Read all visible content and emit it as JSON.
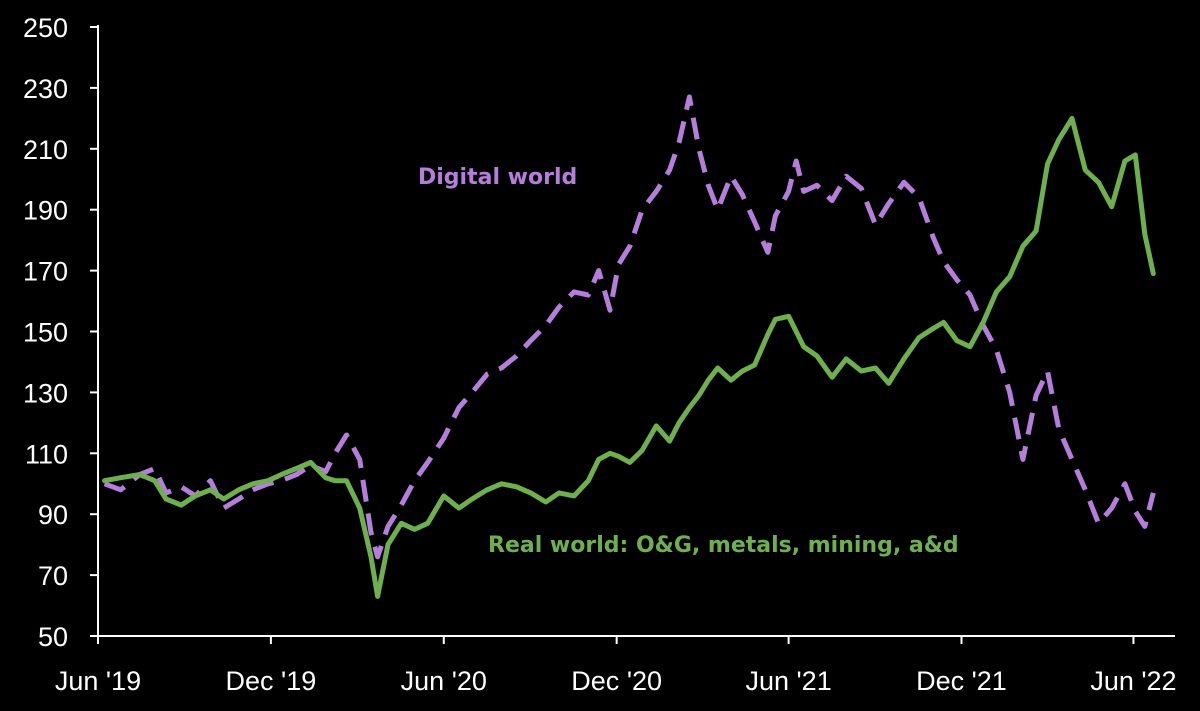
{
  "chart_data": {
    "type": "line",
    "title": "",
    "xlabel": "",
    "ylabel": "",
    "ylim": [
      50,
      250
    ],
    "yticks": [
      50,
      70,
      90,
      110,
      130,
      150,
      170,
      190,
      210,
      230,
      250
    ],
    "xlim": [
      "2019-06-01",
      "2022-07-15"
    ],
    "xticks": [
      {
        "date": "2019-06-01",
        "label": "Jun '19"
      },
      {
        "date": "2019-12-01",
        "label": "Dec '19"
      },
      {
        "date": "2020-06-01",
        "label": "Jun '20"
      },
      {
        "date": "2020-12-01",
        "label": "Dec '20"
      },
      {
        "date": "2021-06-01",
        "label": "Jun '21"
      },
      {
        "date": "2021-12-01",
        "label": "Dec '21"
      },
      {
        "date": "2022-06-01",
        "label": "Jun '22"
      }
    ],
    "grid": false,
    "legend": "none",
    "annotations": [
      {
        "text": "Digital world",
        "series": "digital"
      },
      {
        "text": "Real world: O&G, metals, mining, a&d",
        "series": "real"
      }
    ],
    "series": [
      {
        "key": "digital",
        "style": "dashed",
        "color": "#b57edc",
        "points": [
          [
            "2019-06-08",
            100
          ],
          [
            "2019-06-25",
            98
          ],
          [
            "2019-07-15",
            103
          ],
          [
            "2019-07-31",
            105
          ],
          [
            "2019-08-12",
            97
          ],
          [
            "2019-08-28",
            99
          ],
          [
            "2019-09-12",
            96
          ],
          [
            "2019-09-28",
            101
          ],
          [
            "2019-10-12",
            92
          ],
          [
            "2019-10-28",
            95
          ],
          [
            "2019-11-12",
            98
          ],
          [
            "2019-11-28",
            100
          ],
          [
            "2019-12-12",
            101
          ],
          [
            "2019-12-28",
            103
          ],
          [
            "2020-01-12",
            106
          ],
          [
            "2020-01-28",
            104
          ],
          [
            "2020-02-07",
            110
          ],
          [
            "2020-02-19",
            116
          ],
          [
            "2020-03-04",
            108
          ],
          [
            "2020-03-16",
            84
          ],
          [
            "2020-03-23",
            76
          ],
          [
            "2020-04-03",
            86
          ],
          [
            "2020-04-17",
            93
          ],
          [
            "2020-05-01",
            101
          ],
          [
            "2020-05-15",
            107
          ],
          [
            "2020-06-01",
            115
          ],
          [
            "2020-06-17",
            125
          ],
          [
            "2020-07-01",
            130
          ],
          [
            "2020-07-17",
            136
          ],
          [
            "2020-08-01",
            138
          ],
          [
            "2020-08-17",
            142
          ],
          [
            "2020-09-01",
            147
          ],
          [
            "2020-09-17",
            152
          ],
          [
            "2020-10-01",
            158
          ],
          [
            "2020-10-17",
            163
          ],
          [
            "2020-11-01",
            162
          ],
          [
            "2020-11-12",
            170
          ],
          [
            "2020-11-24",
            157
          ],
          [
            "2020-12-03",
            172
          ],
          [
            "2020-12-15",
            178
          ],
          [
            "2020-12-28",
            190
          ],
          [
            "2021-01-12",
            196
          ],
          [
            "2021-01-26",
            203
          ],
          [
            "2021-02-05",
            212
          ],
          [
            "2021-02-16",
            227
          ],
          [
            "2021-02-26",
            210
          ],
          [
            "2021-03-08",
            198
          ],
          [
            "2021-03-18",
            190
          ],
          [
            "2021-04-01",
            201
          ],
          [
            "2021-04-13",
            195
          ],
          [
            "2021-04-26",
            186
          ],
          [
            "2021-05-10",
            176
          ],
          [
            "2021-05-18",
            188
          ],
          [
            "2021-06-01",
            196
          ],
          [
            "2021-06-09",
            206
          ],
          [
            "2021-06-17",
            196
          ],
          [
            "2021-07-01",
            198
          ],
          [
            "2021-07-17",
            193
          ],
          [
            "2021-08-01",
            201
          ],
          [
            "2021-08-17",
            197
          ],
          [
            "2021-09-01",
            185
          ],
          [
            "2021-09-15",
            192
          ],
          [
            "2021-10-01",
            199
          ],
          [
            "2021-10-17",
            194
          ],
          [
            "2021-11-01",
            181
          ],
          [
            "2021-11-12",
            173
          ],
          [
            "2021-11-26",
            167
          ],
          [
            "2021-12-10",
            162
          ],
          [
            "2021-12-24",
            152
          ],
          [
            "2022-01-07",
            144
          ],
          [
            "2022-01-21",
            130
          ],
          [
            "2022-02-04",
            108
          ],
          [
            "2022-02-18",
            129
          ],
          [
            "2022-03-02",
            137
          ],
          [
            "2022-03-14",
            118
          ],
          [
            "2022-03-28",
            108
          ],
          [
            "2022-04-11",
            98
          ],
          [
            "2022-04-25",
            87
          ],
          [
            "2022-05-09",
            92
          ],
          [
            "2022-05-23",
            100
          ],
          [
            "2022-06-03",
            91
          ],
          [
            "2022-06-13",
            86
          ],
          [
            "2022-06-22",
            97
          ]
        ]
      },
      {
        "key": "real",
        "style": "solid",
        "color": "#6fb04e",
        "points": [
          [
            "2019-06-08",
            101
          ],
          [
            "2019-06-25",
            102
          ],
          [
            "2019-07-15",
            103
          ],
          [
            "2019-07-31",
            101
          ],
          [
            "2019-08-12",
            95
          ],
          [
            "2019-08-28",
            93
          ],
          [
            "2019-09-12",
            96
          ],
          [
            "2019-09-28",
            98
          ],
          [
            "2019-10-12",
            95
          ],
          [
            "2019-10-28",
            98
          ],
          [
            "2019-11-12",
            100
          ],
          [
            "2019-11-28",
            101
          ],
          [
            "2019-12-12",
            103
          ],
          [
            "2019-12-28",
            105
          ],
          [
            "2020-01-12",
            107
          ],
          [
            "2020-01-28",
            102
          ],
          [
            "2020-02-07",
            101
          ],
          [
            "2020-02-19",
            101
          ],
          [
            "2020-03-04",
            92
          ],
          [
            "2020-03-16",
            76
          ],
          [
            "2020-03-23",
            63
          ],
          [
            "2020-04-03",
            80
          ],
          [
            "2020-04-17",
            87
          ],
          [
            "2020-05-01",
            85
          ],
          [
            "2020-05-15",
            87
          ],
          [
            "2020-06-01",
            96
          ],
          [
            "2020-06-17",
            92
          ],
          [
            "2020-07-01",
            95
          ],
          [
            "2020-07-17",
            98
          ],
          [
            "2020-08-01",
            100
          ],
          [
            "2020-08-17",
            99
          ],
          [
            "2020-09-01",
            97
          ],
          [
            "2020-09-17",
            94
          ],
          [
            "2020-10-01",
            97
          ],
          [
            "2020-10-17",
            96
          ],
          [
            "2020-11-01",
            101
          ],
          [
            "2020-11-12",
            108
          ],
          [
            "2020-11-24",
            110
          ],
          [
            "2020-12-03",
            109
          ],
          [
            "2020-12-15",
            107
          ],
          [
            "2020-12-28",
            111
          ],
          [
            "2021-01-12",
            119
          ],
          [
            "2021-01-26",
            114
          ],
          [
            "2021-02-05",
            120
          ],
          [
            "2021-02-16",
            125
          ],
          [
            "2021-02-26",
            129
          ],
          [
            "2021-03-08",
            134
          ],
          [
            "2021-03-18",
            138
          ],
          [
            "2021-04-01",
            134
          ],
          [
            "2021-04-13",
            137
          ],
          [
            "2021-04-26",
            139
          ],
          [
            "2021-05-10",
            149
          ],
          [
            "2021-05-18",
            154
          ],
          [
            "2021-06-01",
            155
          ],
          [
            "2021-06-09",
            150
          ],
          [
            "2021-06-17",
            145
          ],
          [
            "2021-07-01",
            142
          ],
          [
            "2021-07-17",
            135
          ],
          [
            "2021-08-01",
            141
          ],
          [
            "2021-08-17",
            137
          ],
          [
            "2021-09-01",
            138
          ],
          [
            "2021-09-15",
            133
          ],
          [
            "2021-10-01",
            141
          ],
          [
            "2021-10-17",
            148
          ],
          [
            "2021-11-01",
            151
          ],
          [
            "2021-11-12",
            153
          ],
          [
            "2021-11-26",
            147
          ],
          [
            "2021-12-10",
            145
          ],
          [
            "2021-12-24",
            153
          ],
          [
            "2022-01-07",
            163
          ],
          [
            "2022-01-21",
            168
          ],
          [
            "2022-02-04",
            178
          ],
          [
            "2022-02-18",
            183
          ],
          [
            "2022-03-02",
            205
          ],
          [
            "2022-03-14",
            213
          ],
          [
            "2022-03-28",
            220
          ],
          [
            "2022-04-11",
            203
          ],
          [
            "2022-04-25",
            199
          ],
          [
            "2022-05-09",
            191
          ],
          [
            "2022-05-23",
            206
          ],
          [
            "2022-06-03",
            208
          ],
          [
            "2022-06-13",
            182
          ],
          [
            "2022-06-22",
            169
          ]
        ]
      }
    ]
  }
}
